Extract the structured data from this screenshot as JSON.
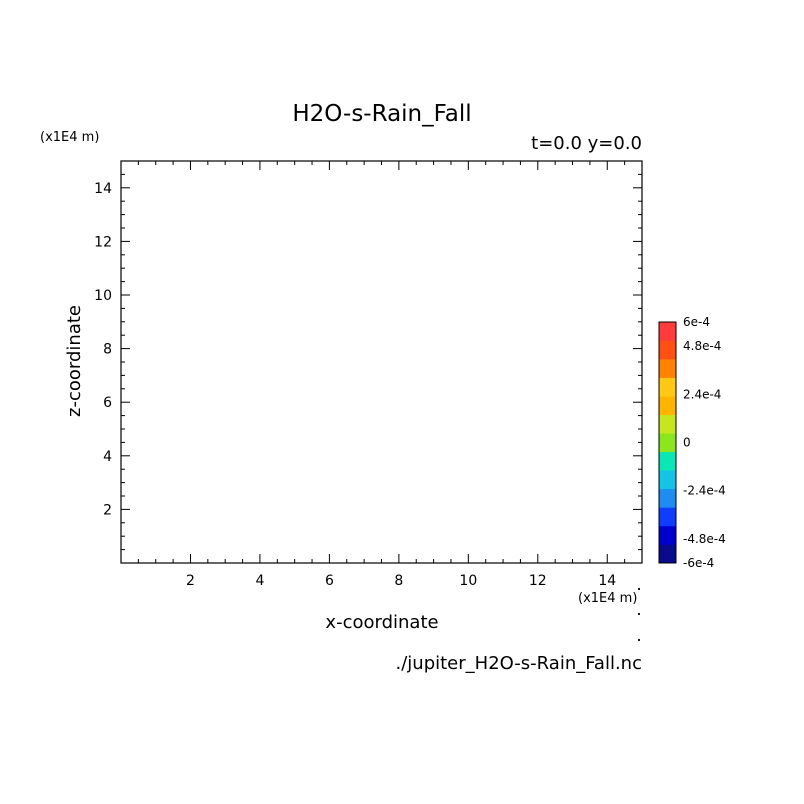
{
  "chart_data": {
    "type": "heatmap",
    "title": "H2O-s-Rain_Fall",
    "subtitle": "t=0.0 y=0.0",
    "xlabel": "x-coordinate",
    "ylabel": "z-coordinate",
    "x_unit": "(x1E4 m)",
    "y_unit": "(x1E4 m)",
    "xlim": [
      0.0,
      15.0
    ],
    "ylim": [
      0.0,
      15.0
    ],
    "x_ticks": [
      2,
      4,
      6,
      8,
      10,
      12,
      14
    ],
    "y_ticks": [
      2,
      4,
      6,
      8,
      10,
      12,
      14
    ],
    "grid": false,
    "values": [],
    "colorbar": {
      "range": [
        -0.0006,
        0.0006
      ],
      "colors": [
        "#0a0a8c",
        "#0000cd",
        "#0f3cff",
        "#1e8cf0",
        "#14c3e6",
        "#0ae6b4",
        "#8ce61e",
        "#c8e61e",
        "#ffb400",
        "#ffc814",
        "#ff8200",
        "#ff5014",
        "#ff3c3c"
      ],
      "labels": [
        {
          "text": "6e-4",
          "value": 0.0006
        },
        {
          "text": "4.8e-4",
          "value": 0.00048
        },
        {
          "text": "2.4e-4",
          "value": 0.00024
        },
        {
          "text": "0",
          "value": 0
        },
        {
          "text": "-2.4e-4",
          "value": -0.00024
        },
        {
          "text": "-4.8e-4",
          "value": -0.00048
        },
        {
          "text": "-6e-4",
          "value": -0.0006
        }
      ]
    }
  },
  "footer": {
    "filename": "./jupiter_H2O-s-Rain_Fall.nc"
  }
}
